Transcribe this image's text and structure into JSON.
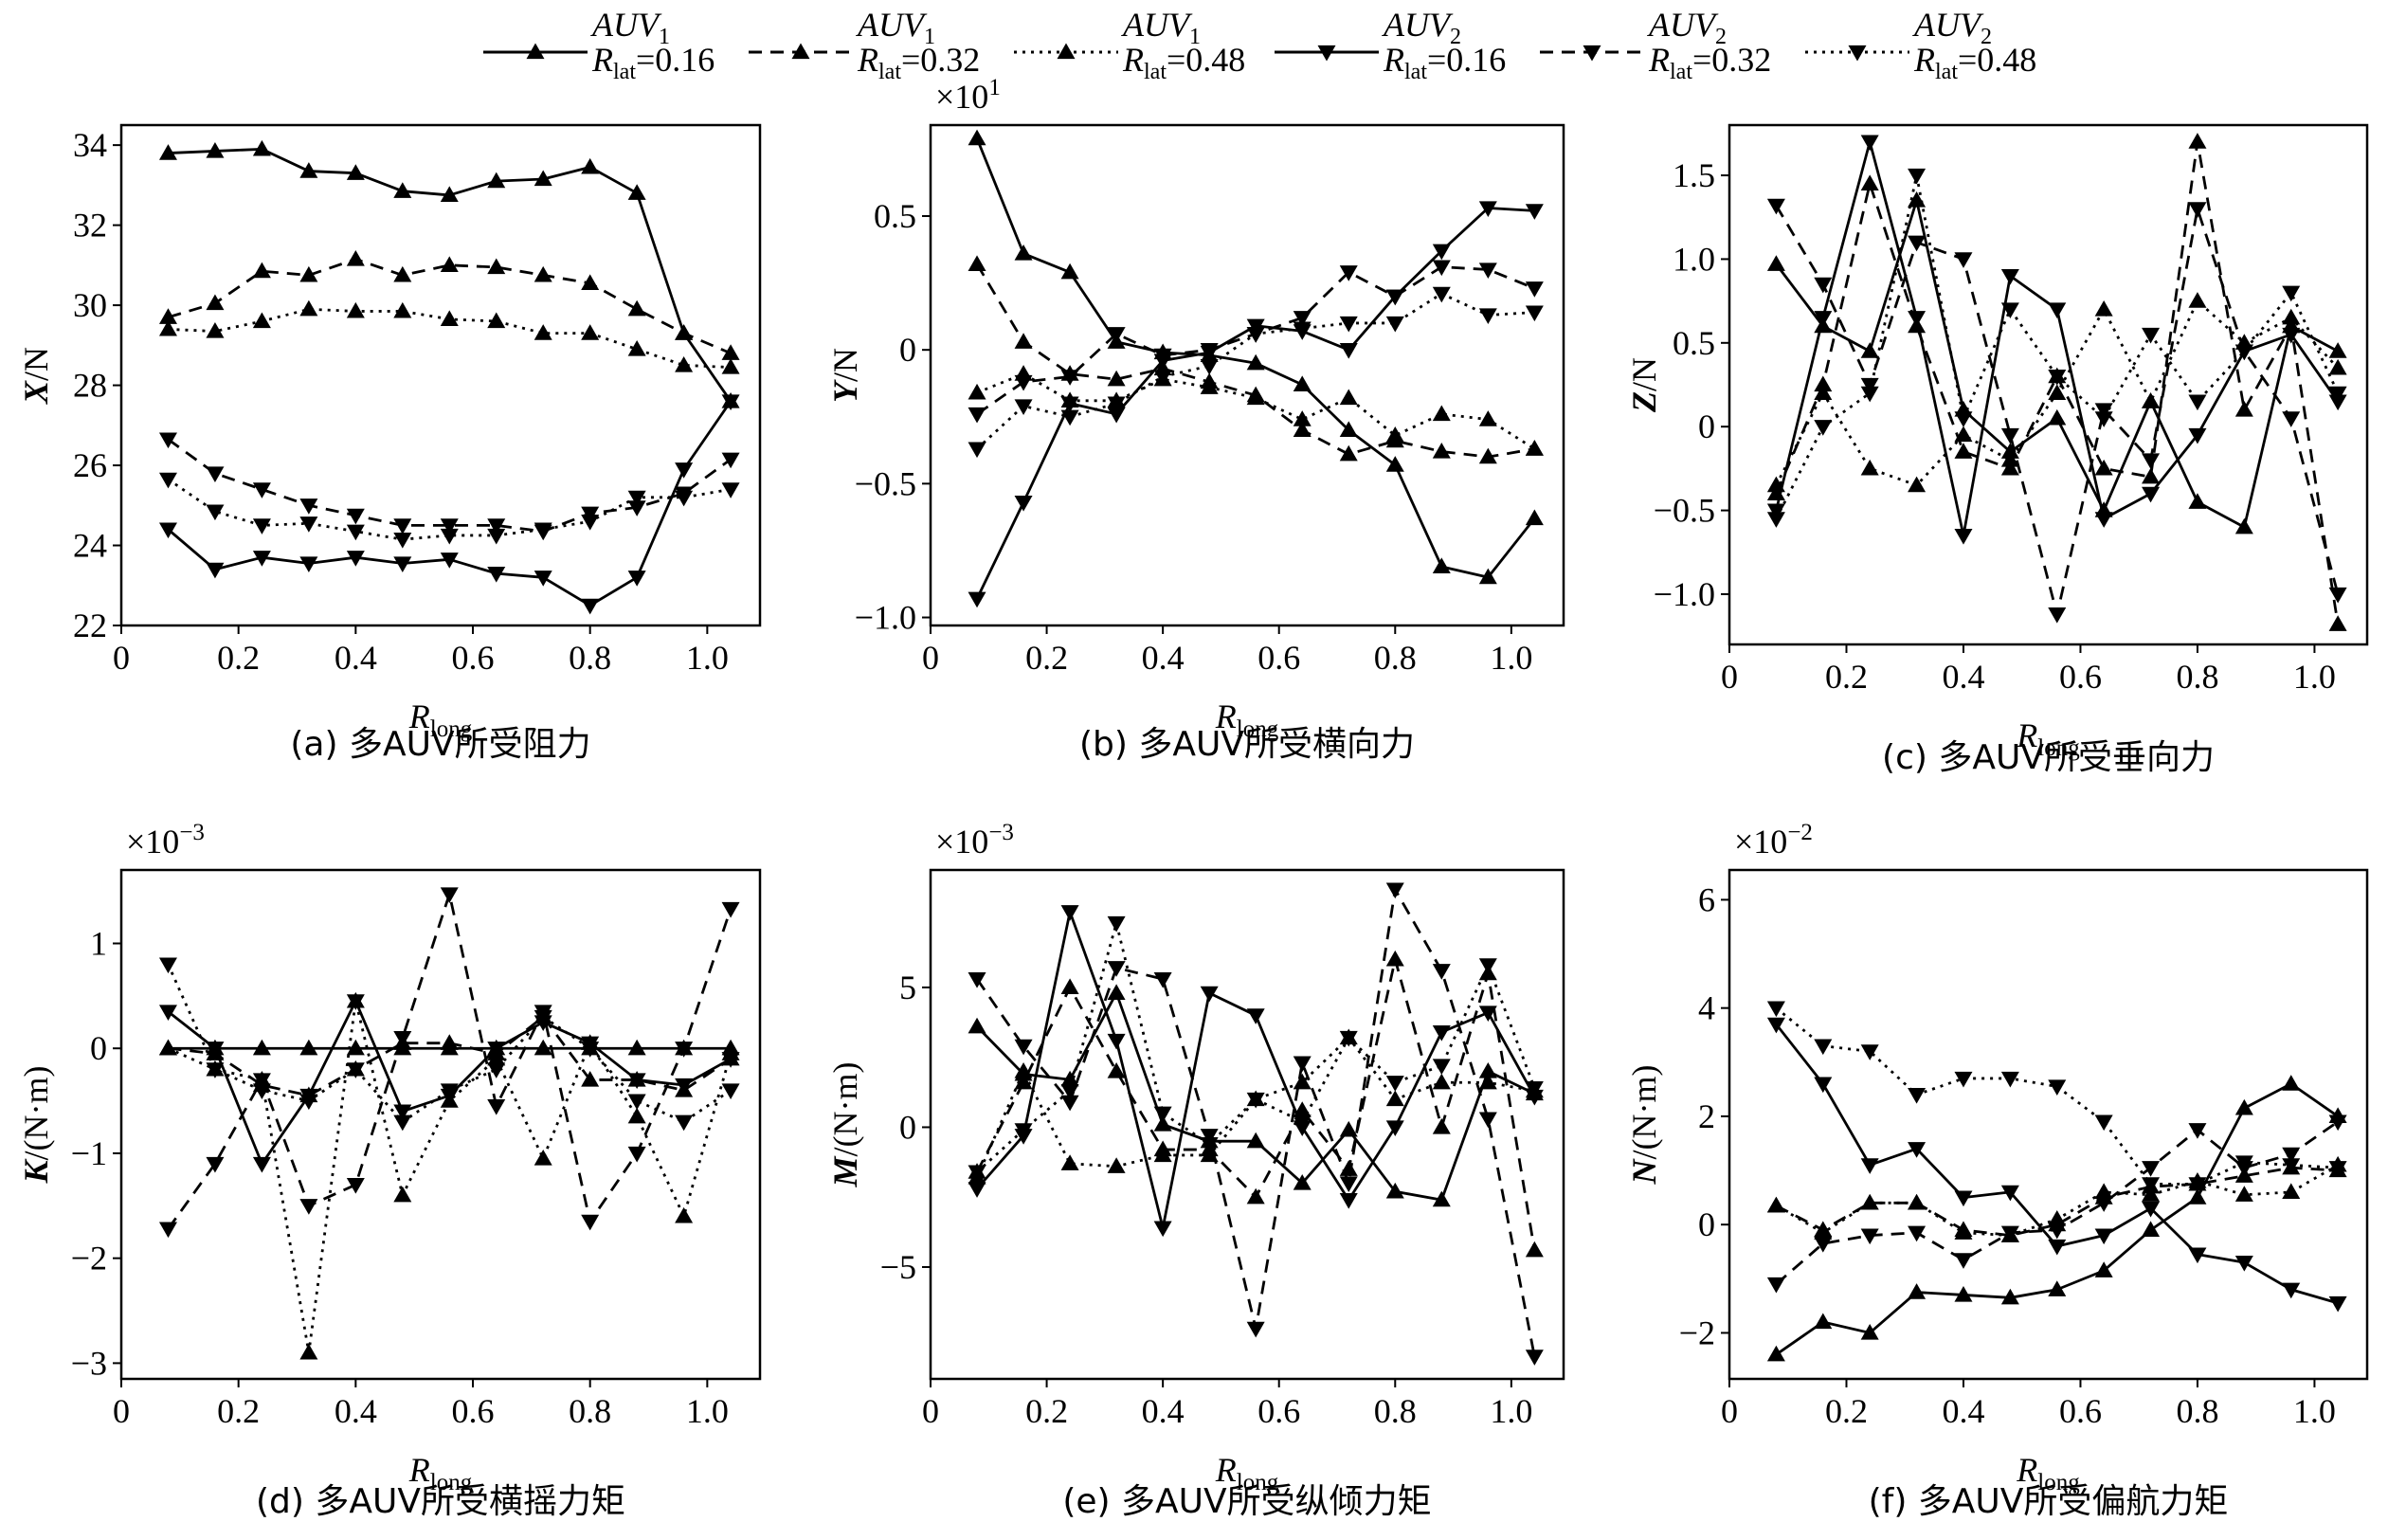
{
  "legend": [
    {
      "id": "a1_16",
      "auv": "AUV",
      "sub": "1",
      "rlat": "R",
      "rlat_sub": "lat",
      "value": "=0.16",
      "style": "solid",
      "marker": "up"
    },
    {
      "id": "a1_32",
      "auv": "AUV",
      "sub": "1",
      "rlat": "R",
      "rlat_sub": "lat",
      "value": "=0.32",
      "style": "dashed",
      "marker": "up"
    },
    {
      "id": "a1_48",
      "auv": "AUV",
      "sub": "1",
      "rlat": "R",
      "rlat_sub": "lat",
      "value": "=0.48",
      "style": "dotted",
      "marker": "up"
    },
    {
      "id": "a2_16",
      "auv": "AUV",
      "sub": "2",
      "rlat": "R",
      "rlat_sub": "lat",
      "value": "=0.16",
      "style": "solid",
      "marker": "down"
    },
    {
      "id": "a2_32",
      "auv": "AUV",
      "sub": "2",
      "rlat": "R",
      "rlat_sub": "lat",
      "value": "=0.32",
      "style": "dashed",
      "marker": "down"
    },
    {
      "id": "a2_48",
      "auv": "AUV",
      "sub": "2",
      "rlat": "R",
      "rlat_sub": "lat",
      "value": "=0.48",
      "style": "dotted",
      "marker": "down"
    }
  ],
  "chart_data": [
    {
      "id": "a",
      "type": "line",
      "caption": "(a) 多AUV所受阻力",
      "ylabel": {
        "sym": "X",
        "unit": "/N"
      },
      "exponent": null,
      "xlabel": {
        "sym": "R",
        "sub": "long"
      },
      "xlim": [
        0,
        1.09
      ],
      "ylim": [
        22,
        34.5
      ],
      "xticks": [
        0,
        0.2,
        0.4,
        0.6,
        0.8,
        1.0
      ],
      "xtick_labels": [
        "0",
        "0.2",
        "0.4",
        "0.6",
        "0.8",
        "1.0"
      ],
      "yticks": [
        22,
        24,
        26,
        28,
        30,
        32,
        34
      ],
      "ytick_labels": [
        "22",
        "24",
        "26",
        "28",
        "30",
        "32",
        "34"
      ],
      "x": [
        0.08,
        0.16,
        0.24,
        0.32,
        0.4,
        0.48,
        0.56,
        0.64,
        0.72,
        0.8,
        0.88,
        0.96,
        1.04
      ],
      "series": [
        {
          "id": "a1_16",
          "values": [
            33.8,
            33.85,
            33.9,
            33.35,
            33.3,
            32.85,
            32.75,
            33.1,
            33.15,
            33.45,
            32.8,
            29.3,
            27.6
          ]
        },
        {
          "id": "a1_32",
          "values": [
            29.7,
            30.05,
            30.85,
            30.75,
            31.15,
            30.75,
            31.0,
            30.95,
            30.75,
            30.55,
            29.9,
            29.3,
            28.8
          ]
        },
        {
          "id": "a1_48",
          "values": [
            29.4,
            29.35,
            29.6,
            29.9,
            29.85,
            29.85,
            29.65,
            29.6,
            29.3,
            29.3,
            28.9,
            28.5,
            28.45
          ]
        },
        {
          "id": "a2_16",
          "values": [
            24.4,
            23.4,
            23.7,
            23.55,
            23.7,
            23.55,
            23.65,
            23.3,
            23.2,
            22.5,
            23.2,
            25.9,
            27.6
          ]
        },
        {
          "id": "a2_32",
          "values": [
            26.65,
            25.8,
            25.4,
            25.0,
            24.75,
            24.5,
            24.5,
            24.5,
            24.35,
            24.8,
            24.95,
            25.3,
            26.15
          ]
        },
        {
          "id": "a2_48",
          "values": [
            25.65,
            24.85,
            24.5,
            24.55,
            24.35,
            24.15,
            24.25,
            24.25,
            24.4,
            24.6,
            25.2,
            25.2,
            25.4
          ]
        }
      ]
    },
    {
      "id": "b",
      "type": "line",
      "caption": "(b) 多AUV所受横向力",
      "ylabel": {
        "sym": "Y",
        "unit": "/N"
      },
      "exponent": {
        "base": "×10",
        "power": "1"
      },
      "xlabel": {
        "sym": "R",
        "sub": "long"
      },
      "xlim": [
        0,
        1.09
      ],
      "ylim": [
        -1.03,
        0.84
      ],
      "xticks": [
        0,
        0.2,
        0.4,
        0.6,
        0.8,
        1.0
      ],
      "xtick_labels": [
        "0",
        "0.2",
        "0.4",
        "0.6",
        "0.8",
        "1.0"
      ],
      "yticks": [
        -1.0,
        -0.5,
        0,
        0.5
      ],
      "ytick_labels": [
        "−1.0",
        "−0.5",
        "0",
        "0.5"
      ],
      "x": [
        0.08,
        0.16,
        0.24,
        0.32,
        0.4,
        0.48,
        0.56,
        0.64,
        0.72,
        0.8,
        0.88,
        0.96,
        1.04
      ],
      "series": [
        {
          "id": "a1_16",
          "values": [
            0.79,
            0.36,
            0.29,
            0.03,
            -0.01,
            -0.02,
            -0.05,
            -0.13,
            -0.3,
            -0.43,
            -0.81,
            -0.85,
            -0.63
          ]
        },
        {
          "id": "a1_32",
          "values": [
            0.32,
            0.03,
            -0.09,
            -0.11,
            -0.07,
            -0.12,
            -0.17,
            -0.3,
            -0.39,
            -0.34,
            -0.38,
            -0.4,
            -0.37
          ]
        },
        {
          "id": "a1_48",
          "values": [
            -0.16,
            -0.09,
            -0.19,
            -0.19,
            -0.11,
            -0.14,
            -0.18,
            -0.26,
            -0.18,
            -0.32,
            -0.24,
            -0.26,
            -0.37
          ]
        },
        {
          "id": "a2_16",
          "values": [
            -0.93,
            -0.57,
            -0.2,
            -0.24,
            -0.04,
            -0.01,
            0.09,
            0.07,
            0.0,
            0.2,
            0.37,
            0.53,
            0.52
          ]
        },
        {
          "id": "a2_32",
          "values": [
            -0.24,
            -0.12,
            -0.1,
            0.06,
            -0.02,
            0.0,
            0.06,
            0.12,
            0.29,
            0.2,
            0.31,
            0.3,
            0.23
          ]
        },
        {
          "id": "a2_48",
          "values": [
            -0.37,
            -0.21,
            -0.25,
            -0.2,
            -0.1,
            -0.06,
            0.06,
            0.08,
            0.1,
            0.1,
            0.21,
            0.13,
            0.14
          ]
        }
      ]
    },
    {
      "id": "c",
      "type": "line",
      "caption": "(c) 多AUV所受垂向力",
      "ylabel": {
        "sym": "Z",
        "unit": "/N"
      },
      "exponent": null,
      "xlabel": {
        "sym": "R",
        "sub": "long"
      },
      "xlim": [
        0,
        1.09
      ],
      "ylim": [
        -1.3,
        1.8
      ],
      "xticks": [
        0,
        0.2,
        0.4,
        0.6,
        0.8,
        1.0
      ],
      "xtick_labels": [
        "0",
        "0.2",
        "0.4",
        "0.6",
        "0.8",
        "1.0"
      ],
      "yticks": [
        -1.0,
        -0.5,
        0,
        0.5,
        1.0,
        1.5
      ],
      "ytick_labels": [
        "−1.0",
        "−0.5",
        "0",
        "0.5",
        "1.0",
        "1.5"
      ],
      "x": [
        0.08,
        0.16,
        0.24,
        0.32,
        0.4,
        0.48,
        0.56,
        0.64,
        0.72,
        0.8,
        0.88,
        0.96,
        1.04
      ],
      "series": [
        {
          "id": "a1_16",
          "values": [
            0.97,
            0.6,
            0.45,
            1.35,
            0.1,
            -0.15,
            0.05,
            -0.5,
            0.15,
            -0.45,
            -0.6,
            0.6,
            0.45
          ]
        },
        {
          "id": "a1_32",
          "values": [
            -0.4,
            0.25,
            1.45,
            0.6,
            -0.15,
            -0.25,
            0.3,
            -0.25,
            -0.3,
            1.7,
            0.1,
            0.6,
            -1.18
          ]
        },
        {
          "id": "a1_48",
          "values": [
            -0.35,
            0.2,
            -0.25,
            -0.35,
            -0.05,
            -0.2,
            0.2,
            0.7,
            0.15,
            0.75,
            0.5,
            0.65,
            0.35
          ]
        },
        {
          "id": "a2_16",
          "values": [
            -0.5,
            0.65,
            1.7,
            0.65,
            -0.65,
            0.9,
            0.7,
            -0.55,
            -0.4,
            -0.05,
            0.45,
            0.55,
            0.15
          ]
        },
        {
          "id": "a2_32",
          "values": [
            1.32,
            0.85,
            0.25,
            1.1,
            1.0,
            -0.05,
            -1.12,
            0.1,
            -0.2,
            1.3,
            0.45,
            0.05,
            -1.0
          ]
        },
        {
          "id": "a2_48",
          "values": [
            -0.55,
            0.0,
            0.2,
            1.5,
            0.05,
            0.7,
            0.3,
            0.05,
            0.55,
            0.15,
            0.45,
            0.8,
            0.2
          ]
        }
      ]
    },
    {
      "id": "d",
      "type": "line",
      "caption": "(d) 多AUV所受横摇力矩",
      "ylabel": {
        "sym": "K",
        "unit": "/(N·m)"
      },
      "exponent": {
        "base": "×10",
        "power": "−3"
      },
      "xlabel": {
        "sym": "R",
        "sub": "long"
      },
      "xlim": [
        0,
        1.09
      ],
      "ylim": [
        -3.15,
        1.7
      ],
      "xticks": [
        0,
        0.2,
        0.4,
        0.6,
        0.8,
        1.0
      ],
      "xtick_labels": [
        "0",
        "0.2",
        "0.4",
        "0.6",
        "0.8",
        "1.0"
      ],
      "yticks": [
        -3,
        -2,
        -1,
        0,
        1
      ],
      "ytick_labels": [
        "−3",
        "−2",
        "−1",
        "0",
        "1"
      ],
      "x": [
        0.08,
        0.16,
        0.24,
        0.32,
        0.4,
        0.48,
        0.56,
        0.64,
        0.72,
        0.8,
        0.88,
        0.96,
        1.04
      ],
      "series": [
        {
          "id": "a1_16",
          "values": [
            0,
            0,
            0,
            0,
            0,
            0,
            0,
            0,
            0,
            0,
            0,
            0,
            0
          ]
        },
        {
          "id": "a1_32",
          "values": [
            0,
            -0.05,
            -0.35,
            -0.45,
            -0.2,
            0.05,
            0.05,
            -0.05,
            0.3,
            -0.3,
            -0.3,
            -0.4,
            -0.1
          ]
        },
        {
          "id": "a1_48",
          "values": [
            0,
            -0.2,
            -0.3,
            -2.9,
            0.45,
            -1.4,
            -0.5,
            -0.1,
            -1.05,
            0.05,
            -0.65,
            -1.6,
            -0.05
          ]
        },
        {
          "id": "a2_16",
          "values": [
            0.35,
            0.0,
            -1.1,
            -0.45,
            0.45,
            -0.6,
            -0.45,
            0.0,
            0.25,
            0.05,
            -0.3,
            -0.35,
            -0.1
          ]
        },
        {
          "id": "a2_32",
          "values": [
            -1.72,
            -1.1,
            -0.3,
            -1.5,
            -1.3,
            0.1,
            1.47,
            -0.55,
            0.35,
            -1.65,
            -1.0,
            0.0,
            1.33
          ]
        },
        {
          "id": "a2_48",
          "values": [
            0.8,
            -0.2,
            -0.4,
            -0.5,
            -0.2,
            -0.7,
            -0.4,
            -0.2,
            0.3,
            0.0,
            -0.5,
            -0.7,
            -0.4
          ]
        }
      ]
    },
    {
      "id": "e",
      "type": "line",
      "caption": "(e) 多AUV所受纵倾力矩",
      "ylabel": {
        "sym": "M",
        "unit": "/(N·m)"
      },
      "exponent": {
        "base": "×10",
        "power": "−3"
      },
      "xlabel": {
        "sym": "R",
        "sub": "long"
      },
      "xlim": [
        0,
        1.09
      ],
      "ylim": [
        -9.0,
        9.2
      ],
      "xticks": [
        0,
        0.2,
        0.4,
        0.6,
        0.8,
        1.0
      ],
      "xtick_labels": [
        "0",
        "0.2",
        "0.4",
        "0.6",
        "0.8",
        "1.0"
      ],
      "yticks": [
        -5,
        0,
        5
      ],
      "ytick_labels": [
        "−5",
        "0",
        "5"
      ],
      "x": [
        0.08,
        0.16,
        0.24,
        0.32,
        0.4,
        0.48,
        0.56,
        0.64,
        0.72,
        0.8,
        0.88,
        0.96,
        1.04
      ],
      "series": [
        {
          "id": "a1_16",
          "values": [
            3.6,
            1.9,
            1.7,
            4.8,
            0.1,
            -0.5,
            -0.5,
            -2.0,
            -0.1,
            -2.3,
            -2.6,
            2.0,
            1.2
          ]
        },
        {
          "id": "a1_32",
          "values": [
            -1.6,
            1.6,
            5.0,
            2.0,
            -0.8,
            -0.8,
            -2.5,
            0.6,
            -1.5,
            6.0,
            0.0,
            5.5,
            -4.4
          ]
        },
        {
          "id": "a1_48",
          "values": [
            -1.8,
            2.0,
            -1.3,
            -1.4,
            -1.0,
            -1.0,
            1.0,
            1.6,
            3.2,
            1.0,
            1.6,
            1.6,
            1.3
          ]
        },
        {
          "id": "a2_16",
          "values": [
            -2.2,
            -0.3,
            7.7,
            3.1,
            -3.6,
            4.8,
            4.0,
            0.0,
            -2.6,
            0.0,
            3.4,
            4.1,
            1.1
          ]
        },
        {
          "id": "a2_32",
          "values": [
            5.3,
            2.9,
            0.9,
            5.7,
            5.3,
            -0.3,
            -7.2,
            2.3,
            -2.0,
            8.5,
            5.6,
            0.3,
            -8.2
          ]
        },
        {
          "id": "a2_48",
          "values": [
            -1.6,
            -0.1,
            1.3,
            7.3,
            0.5,
            -0.6,
            1.0,
            0.2,
            3.2,
            1.6,
            2.2,
            5.8,
            1.4
          ]
        }
      ]
    },
    {
      "id": "f",
      "type": "line",
      "caption": "(f) 多AUV所受偏航力矩",
      "ylabel": {
        "sym": "N",
        "unit": "/(N·m)"
      },
      "exponent": {
        "base": "×10",
        "power": "−2"
      },
      "xlabel": {
        "sym": "R",
        "sub": "long"
      },
      "xlim": [
        0,
        1.09
      ],
      "ylim": [
        -2.85,
        6.55
      ],
      "xticks": [
        0,
        0.2,
        0.4,
        0.6,
        0.8,
        1.0
      ],
      "xtick_labels": [
        "0",
        "0.2",
        "0.4",
        "0.6",
        "0.8",
        "1.0"
      ],
      "yticks": [
        -2,
        0,
        2,
        4,
        6
      ],
      "ytick_labels": [
        "−2",
        "0",
        "2",
        "4",
        "6"
      ],
      "x": [
        0.08,
        0.16,
        0.24,
        0.32,
        0.4,
        0.48,
        0.56,
        0.64,
        0.72,
        0.8,
        0.88,
        0.96,
        1.04
      ],
      "series": [
        {
          "id": "a1_16",
          "values": [
            -2.4,
            -1.8,
            -2.0,
            -1.25,
            -1.3,
            -1.35,
            -1.2,
            -0.85,
            -0.1,
            0.5,
            2.15,
            2.6,
            2.0
          ]
        },
        {
          "id": "a1_32",
          "values": [
            0.35,
            -0.1,
            0.4,
            0.4,
            -0.1,
            -0.2,
            0.0,
            0.5,
            0.7,
            0.75,
            0.9,
            1.05,
            1.0
          ]
        },
        {
          "id": "a1_48",
          "values": [
            0.35,
            -0.15,
            0.4,
            0.4,
            -0.15,
            -0.2,
            0.1,
            0.6,
            0.55,
            0.8,
            0.55,
            0.6,
            1.1
          ]
        },
        {
          "id": "a2_16",
          "values": [
            3.7,
            2.6,
            1.1,
            1.4,
            0.5,
            0.6,
            -0.4,
            -0.2,
            0.3,
            -0.55,
            -0.7,
            -1.2,
            -1.45
          ]
        },
        {
          "id": "a2_32",
          "values": [
            -1.1,
            -0.35,
            -0.2,
            -0.15,
            -0.65,
            -0.15,
            -0.1,
            0.4,
            1.05,
            1.75,
            1.05,
            1.3,
            1.9
          ]
        },
        {
          "id": "a2_48",
          "values": [
            4.0,
            3.3,
            3.2,
            2.4,
            2.7,
            2.7,
            2.55,
            1.9,
            0.75,
            0.75,
            1.15,
            1.1,
            1.05
          ]
        }
      ]
    }
  ]
}
